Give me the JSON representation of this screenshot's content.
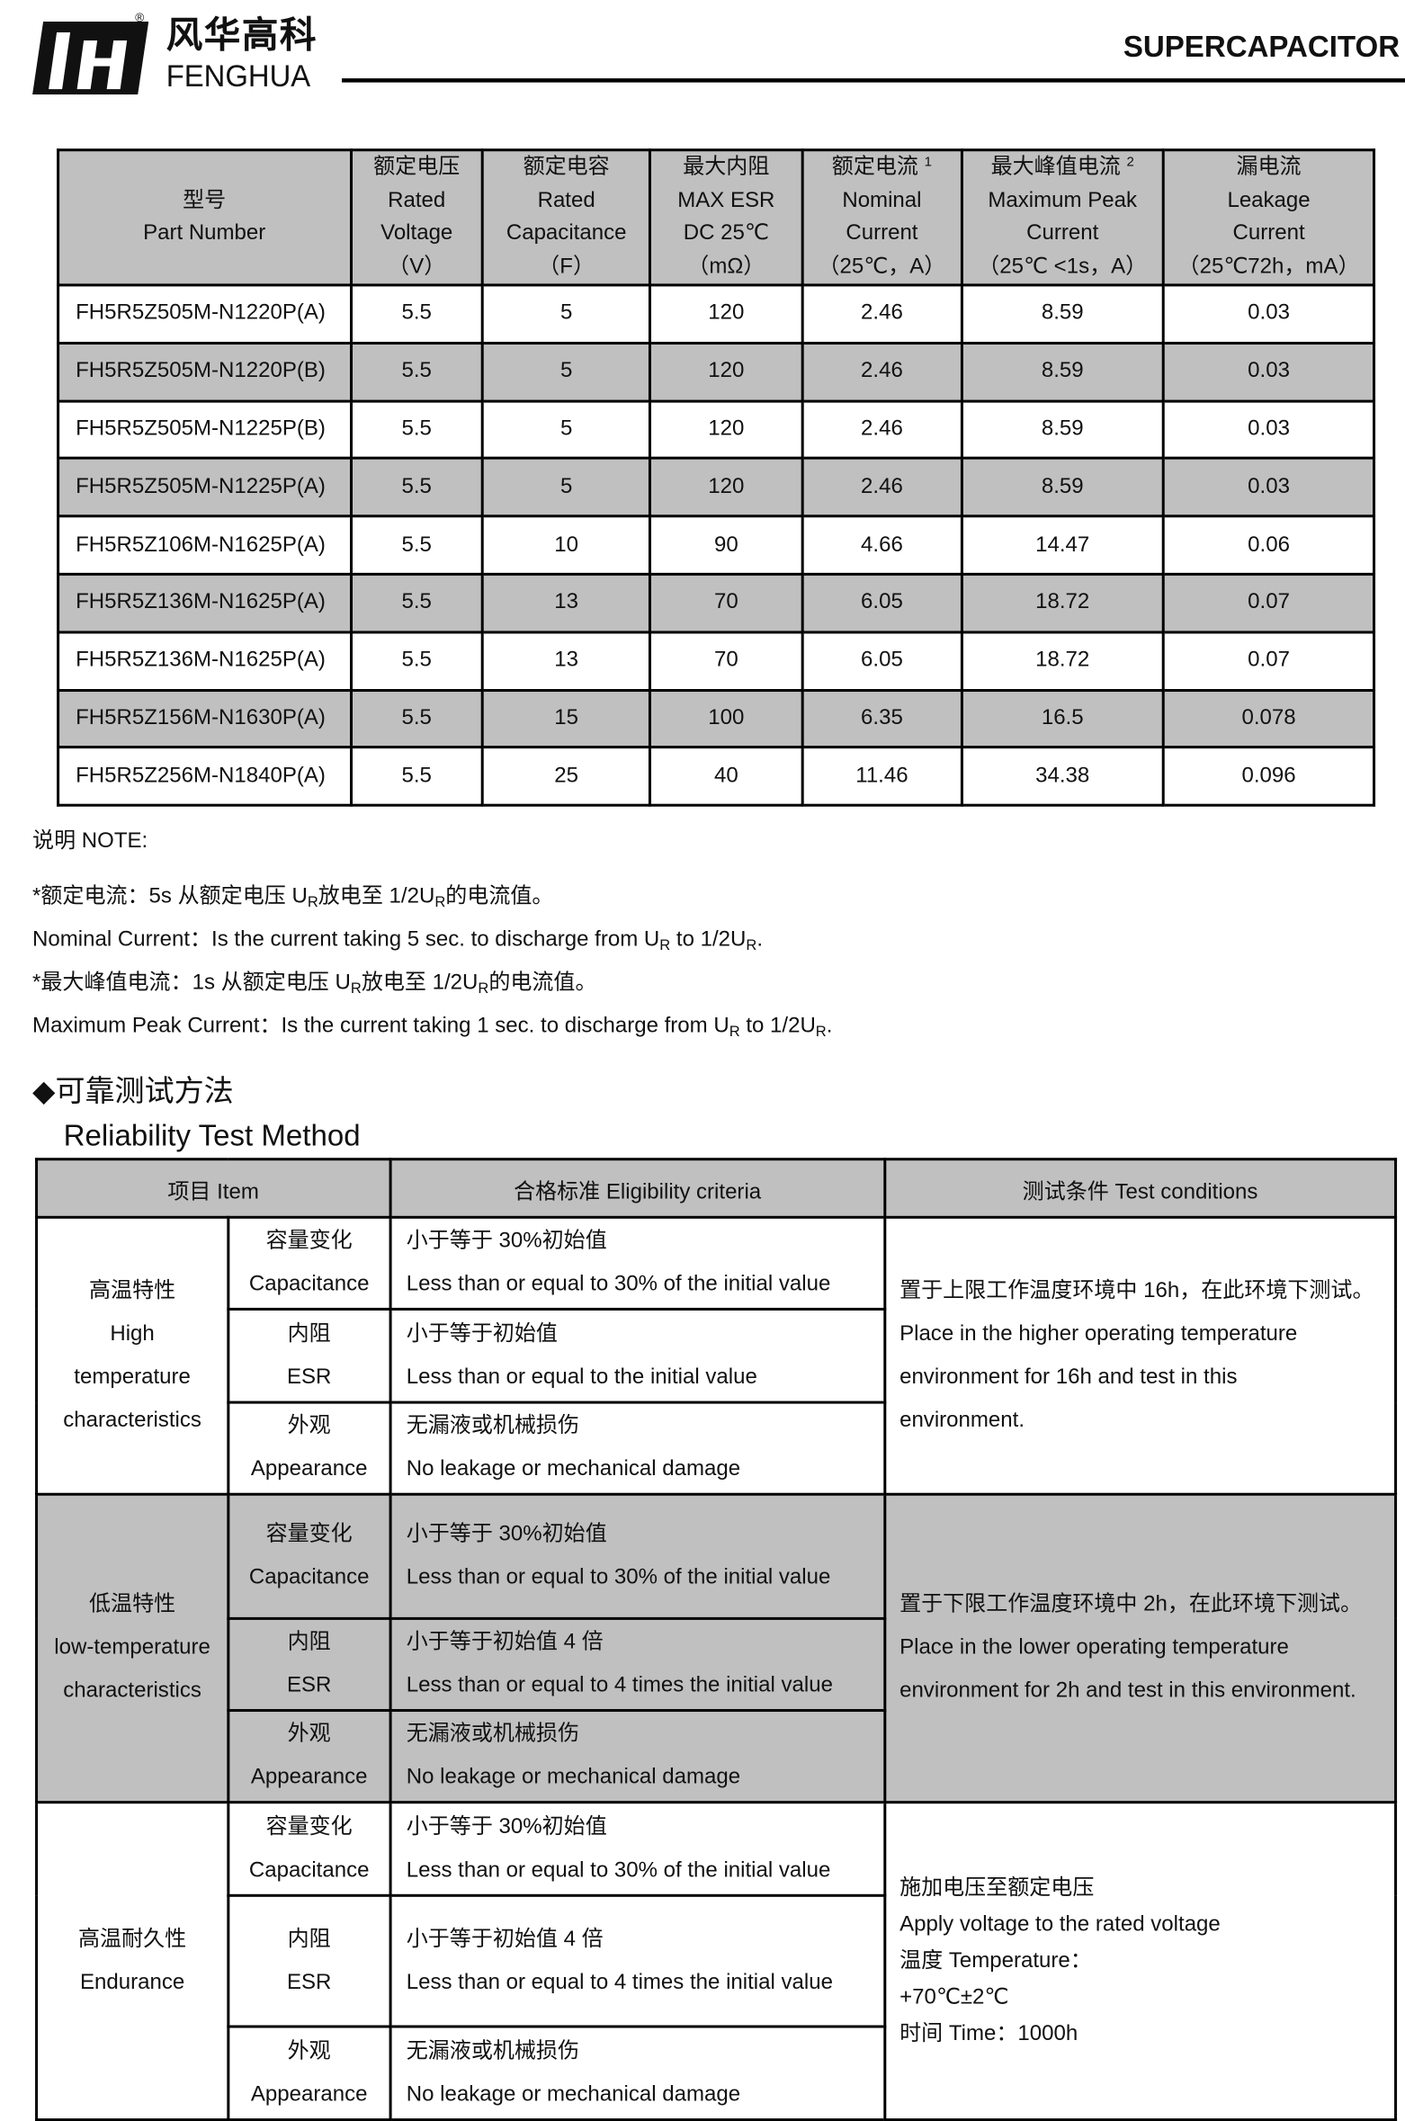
{
  "header": {
    "brand_cn": "风华高科",
    "brand_en": "FENGHUA",
    "registered": "®",
    "title": "SUPERCAPACITOR"
  },
  "spec_table": {
    "headers": [
      {
        "cn": "型号",
        "en": "Part Number"
      },
      {
        "cn": "额定电压",
        "en1": "Rated",
        "en2": "Voltage",
        "unit": "（V）"
      },
      {
        "cn": "额定电容",
        "en1": "Rated",
        "en2": "Capacitance",
        "unit": "（F）"
      },
      {
        "cn": "最大内阻",
        "en1": "MAX ESR",
        "en2": "DC 25℃",
        "unit": "（mΩ）"
      },
      {
        "cn": "额定电流",
        "sup": "1",
        "en1": "Nominal",
        "en2": "Current",
        "unit": "（25℃，A）"
      },
      {
        "cn": "最大峰值电流",
        "sup": "2",
        "en1": "Maximum Peak",
        "en2": "Current",
        "unit": "（25℃ <1s，A）"
      },
      {
        "cn": "漏电流",
        "en1": "Leakage",
        "en2": "Current",
        "unit": "（25℃72h，mA）"
      }
    ],
    "rows": [
      [
        "FH5R5Z505M-N1220P(A)",
        "5.5",
        "5",
        "120",
        "2.46",
        "8.59",
        "0.03"
      ],
      [
        "FH5R5Z505M-N1220P(B)",
        "5.5",
        "5",
        "120",
        "2.46",
        "8.59",
        "0.03"
      ],
      [
        "FH5R5Z505M-N1225P(B)",
        "5.5",
        "5",
        "120",
        "2.46",
        "8.59",
        "0.03"
      ],
      [
        "FH5R5Z505M-N1225P(A)",
        "5.5",
        "5",
        "120",
        "2.46",
        "8.59",
        "0.03"
      ],
      [
        "FH5R5Z106M-N1625P(A)",
        "5.5",
        "10",
        "90",
        "4.66",
        "14.47",
        "0.06"
      ],
      [
        "FH5R5Z136M-N1625P(A)",
        "5.5",
        "13",
        "70",
        "6.05",
        "18.72",
        "0.07"
      ],
      [
        "FH5R5Z136M-N1625P(A)",
        "5.5",
        "13",
        "70",
        "6.05",
        "18.72",
        "0.07"
      ],
      [
        "FH5R5Z156M-N1630P(A)",
        "5.5",
        "15",
        "100",
        "6.35",
        "16.5",
        "0.078"
      ],
      [
        "FH5R5Z256M-N1840P(A)",
        "5.5",
        "25",
        "40",
        "11.46",
        "34.38",
        "0.096"
      ]
    ]
  },
  "notes": {
    "title": "说明 NOTE:",
    "n1_a": "*额定电流：5s 从额定电压 U",
    "n1_b": "放电至 1/2U",
    "n1_c": "的电流值。",
    "n2_a": "Nominal Current：Is the current taking 5 sec. to discharge from U",
    "n2_b": " to 1/2U",
    "n2_c": ".",
    "n3_a": "*最大峰值电流：1s 从额定电压 U",
    "n3_b": "放电至 1/2U",
    "n3_c": "的电流值。",
    "n4_a": "Maximum Peak Current：Is the current taking 1 sec. to discharge from U",
    "n4_b": " to 1/2U",
    "n4_c": ".",
    "sub": "R"
  },
  "reliability": {
    "title_cn": "◆可靠测试方法",
    "title_en": "Reliability Test Method",
    "headers": [
      "项目 Item",
      "合格标准 Eligibility criteria",
      "测试条件 Test conditions"
    ],
    "groups": [
      {
        "item": [
          "高温特性",
          "High",
          "temperature",
          "characteristics"
        ],
        "rows": [
          {
            "p_cn": "容量变化",
            "p_en": "Capacitance",
            "c_cn": "小于等于 30%初始值",
            "c_en": "Less than or equal to 30% of the initial value"
          },
          {
            "p_cn": "内阻",
            "p_en": "ESR",
            "c_cn": "小于等于初始值",
            "c_en": "Less than or equal to the initial value"
          },
          {
            "p_cn": "外观",
            "p_en": "Appearance",
            "c_cn": "无漏液或机械损伤",
            "c_en": "No leakage or mechanical damage"
          }
        ],
        "cond": [
          "置于上限工作温度环境中 16h，在此环境下测试。",
          "Place in the higher operating temperature",
          "environment for 16h and test in this",
          "environment."
        ]
      },
      {
        "item": [
          "低温特性",
          "low-temperature",
          "characteristics"
        ],
        "rows": [
          {
            "p_cn": "容量变化",
            "p_en": "Capacitance",
            "c_cn": "小于等于 30%初始值",
            "c_en": "Less than or equal to 30% of the initial value"
          },
          {
            "p_cn": "内阻",
            "p_en": "ESR",
            "c_cn": "小于等于初始值 4 倍",
            "c_en": "Less than or equal to 4 times the initial value"
          },
          {
            "p_cn": "外观",
            "p_en": "Appearance",
            "c_cn": "无漏液或机械损伤",
            "c_en": "No leakage or mechanical damage"
          }
        ],
        "cond": [
          "置于下限工作温度环境中 2h，在此环境下测试。",
          "Place in the lower operating temperature",
          "environment for 2h and test in this environment."
        ]
      },
      {
        "item": [
          "高温耐久性",
          "Endurance"
        ],
        "rows": [
          {
            "p_cn": "容量变化",
            "p_en": "Capacitance",
            "c_cn": "小于等于 30%初始值",
            "c_en": "Less than or equal to 30% of the initial value"
          },
          {
            "p_cn": "内阻",
            "p_en": "ESR",
            "c_cn": "小于等于初始值 4 倍",
            "c_en": "Less than or equal to 4 times the initial value"
          },
          {
            "p_cn": "外观",
            "p_en": "Appearance",
            "c_cn": "无漏液或机械损伤",
            "c_en": "No leakage or mechanical damage"
          }
        ],
        "cond": [
          "施加电压至额定电压",
          "Apply voltage to the rated voltage",
          "温度 Temperature：",
          "+70℃±2℃",
          "时间 Time：1000h"
        ]
      }
    ]
  }
}
